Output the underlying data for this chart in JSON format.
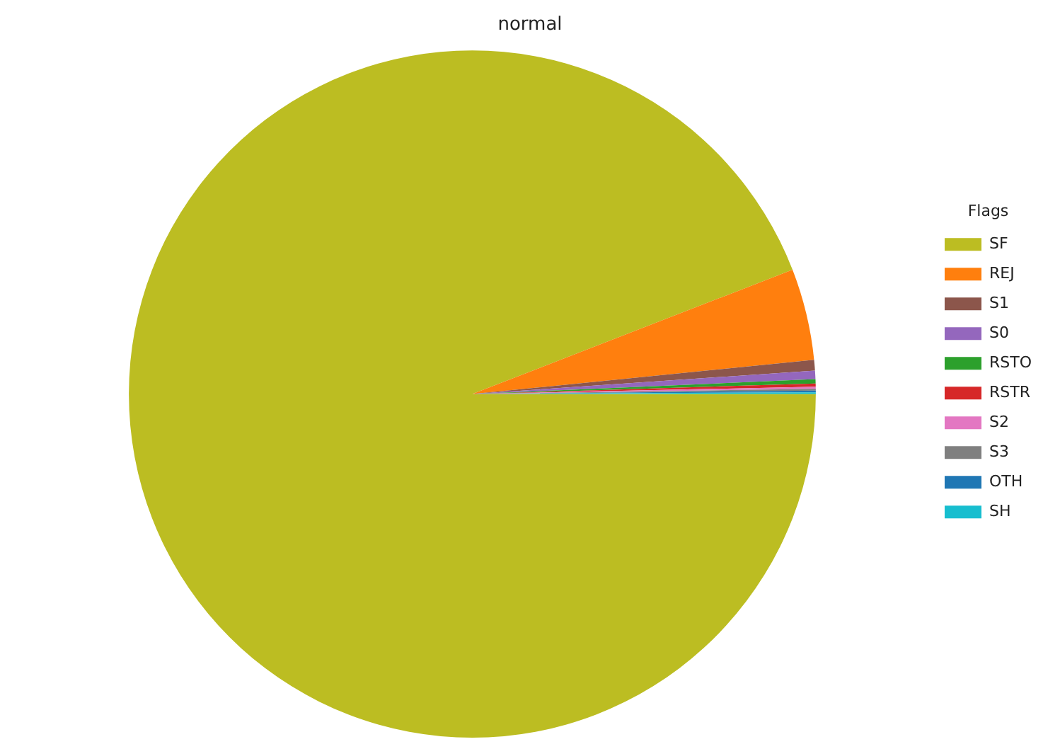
{
  "chart_data": {
    "type": "pie",
    "title": "normal",
    "legend_title": "Flags",
    "legend": "right",
    "categories": [
      "SF",
      "REJ",
      "S1",
      "S0",
      "RSTO",
      "RSTR",
      "S2",
      "S3",
      "OTH",
      "SH"
    ],
    "values": [
      94.11,
      4.3,
      0.5,
      0.4,
      0.2,
      0.15,
      0.1,
      0.08,
      0.08,
      0.08
    ],
    "colors": [
      "#bcbd22",
      "#ff7f0e",
      "#8c564b",
      "#9467bd",
      "#2ca02c",
      "#d62728",
      "#e377c2",
      "#7f7f7f",
      "#1f77b4",
      "#17becf"
    ]
  }
}
